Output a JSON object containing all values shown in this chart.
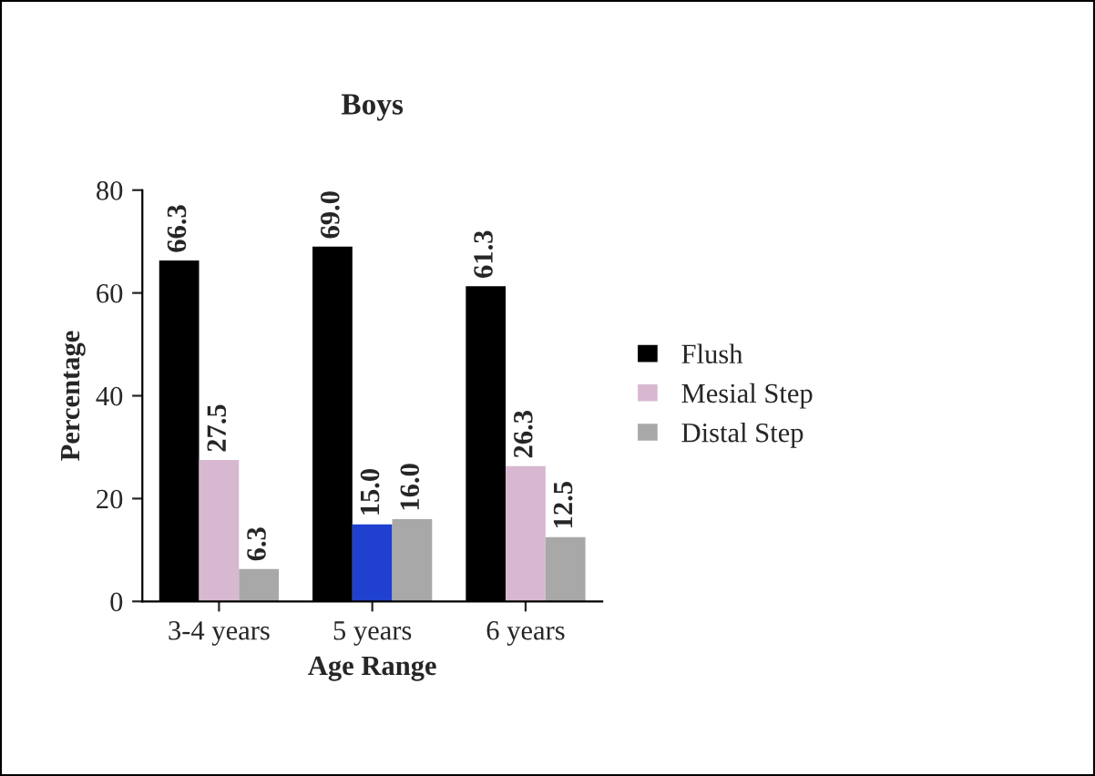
{
  "chart_data": {
    "type": "bar",
    "title": "Boys",
    "xlabel": "Age Range",
    "ylabel": "Percentage",
    "categories": [
      "3-4 years",
      "5 years",
      "6 years"
    ],
    "series": [
      {
        "name": "Flush",
        "color": "#000000",
        "values": [
          66.3,
          69,
          61.3
        ],
        "value_labels": [
          "66.3",
          "69.0",
          "61.3"
        ]
      },
      {
        "name": "Mesial Step",
        "color": "#d8b8d0",
        "colors": [
          "#d8b8d0",
          "#2040d0",
          "#d8b8d0"
        ],
        "values": [
          27.5,
          15,
          26.3
        ],
        "value_labels": [
          "27.5",
          "15.0",
          "26.3"
        ]
      },
      {
        "name": "Distal Step",
        "color": "#a8a8a8",
        "values": [
          6.3,
          16,
          12.5
        ],
        "value_labels": [
          "6.3",
          "16.0",
          "12.5"
        ]
      }
    ],
    "ylim": [
      0,
      80
    ],
    "yticks": [
      0,
      20,
      40,
      60,
      80
    ],
    "grid": false,
    "legend": "right"
  }
}
